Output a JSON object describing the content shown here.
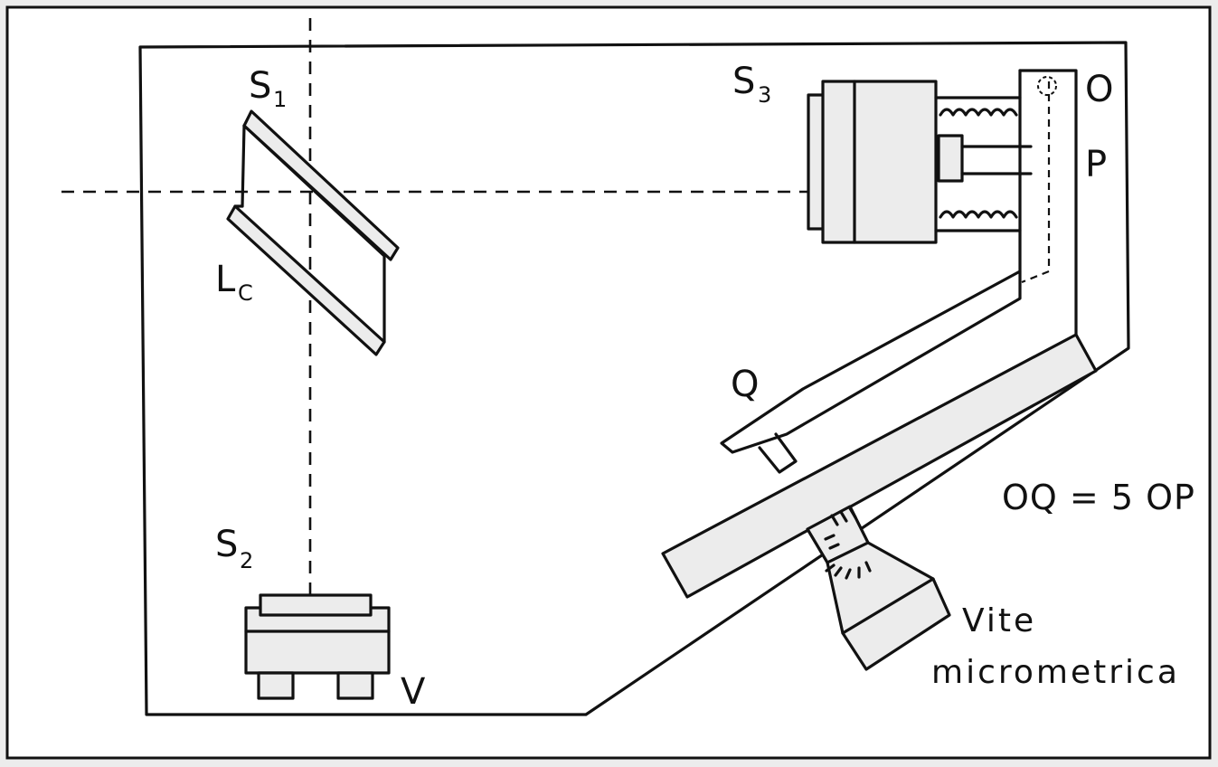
{
  "labels": {
    "s1": {
      "main": "S",
      "sub": "1"
    },
    "s2": {
      "main": "S",
      "sub": "2"
    },
    "s3": {
      "main": "S",
      "sub": "3"
    },
    "lc": {
      "main": "L",
      "sub": "C"
    },
    "o": "O",
    "p": "P",
    "q": "Q",
    "v": "V",
    "equation": "OQ = 5 OP",
    "screw_line1": "Vite",
    "screw_line2": "micrometrica"
  }
}
